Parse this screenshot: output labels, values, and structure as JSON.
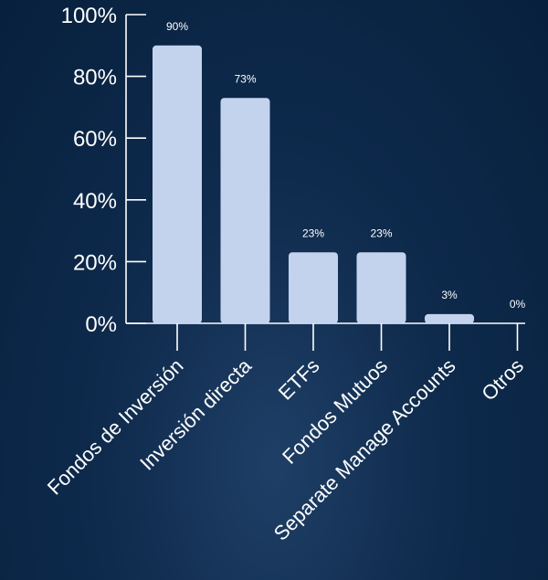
{
  "chart_data": {
    "type": "bar",
    "categories": [
      "Fondos de Inversión",
      "Inversión directa",
      "ETFs",
      "Fondos Mutuos",
      "Separate Manage Accounts",
      "Otros"
    ],
    "values": [
      90,
      73,
      23,
      23,
      3,
      0
    ],
    "value_labels": [
      "90%",
      "73%",
      "23%",
      "23%",
      "3%",
      "0%"
    ],
    "y_ticks": [
      0,
      20,
      40,
      60,
      80,
      100
    ],
    "y_tick_labels": [
      "0%",
      "20%",
      "40%",
      "60%",
      "80%",
      "100%"
    ],
    "ylim": [
      0,
      100
    ],
    "grid": false,
    "colors": {
      "bar": "#c3d3ee",
      "axis": "#ffffff",
      "text": "#ffffff"
    }
  }
}
